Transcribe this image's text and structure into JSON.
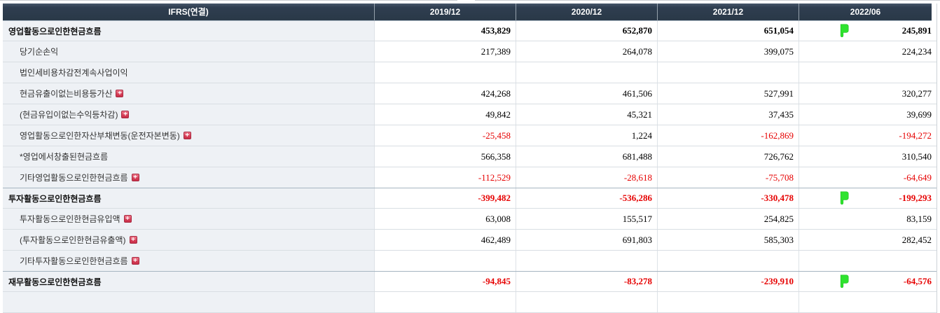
{
  "table": {
    "header": {
      "label": "IFRS(연결)",
      "periods": [
        "2019/12",
        "2020/12",
        "2021/12",
        "2022/06"
      ]
    },
    "icons": {
      "expand_plus": "+",
      "flag": "green-flag"
    },
    "colors": {
      "header_bg": "#2f3e50",
      "label_column_bg": "#eef1f5",
      "negative_value": "#e60000",
      "positive_value": "#000000",
      "flag_green": "#2fe32f",
      "expand_red": "#d63f58"
    },
    "rows": [
      {
        "label": "영업활동으로인한현금흐름",
        "type": "section",
        "expand": false,
        "flag": true,
        "values": [
          "453,829",
          "652,870",
          "651,054",
          "245,891"
        ]
      },
      {
        "label": "당기순손익",
        "type": "sub",
        "expand": false,
        "flag": false,
        "values": [
          "217,389",
          "264,078",
          "399,075",
          "224,234"
        ]
      },
      {
        "label": "법인세비용차감전계속사업이익",
        "type": "sub",
        "expand": false,
        "flag": false,
        "values": [
          "",
          "",
          "",
          ""
        ]
      },
      {
        "label": "현금유출이없는비용등가산",
        "type": "sub",
        "expand": true,
        "flag": false,
        "values": [
          "424,268",
          "461,506",
          "527,991",
          "320,277"
        ]
      },
      {
        "label": "(현금유입이없는수익등차감)",
        "type": "sub",
        "expand": true,
        "flag": false,
        "values": [
          "49,842",
          "45,321",
          "37,435",
          "39,699"
        ]
      },
      {
        "label": "영업활동으로인한자산부채변동(운전자본변동)",
        "type": "sub",
        "expand": true,
        "flag": false,
        "values": [
          "-25,458",
          "1,224",
          "-162,869",
          "-194,272"
        ]
      },
      {
        "label": "*영업에서창출된현금흐름",
        "type": "sub",
        "expand": false,
        "flag": false,
        "values": [
          "566,358",
          "681,488",
          "726,762",
          "310,540"
        ]
      },
      {
        "label": "기타영업활동으로인한현금흐름",
        "type": "sub",
        "expand": true,
        "flag": false,
        "values": [
          "-112,529",
          "-28,618",
          "-75,708",
          "-64,649"
        ]
      },
      {
        "label": "투자활동으로인한현금흐름",
        "type": "section",
        "expand": false,
        "flag": true,
        "values": [
          "-399,482",
          "-536,286",
          "-330,478",
          "-199,293"
        ]
      },
      {
        "label": "투자활동으로인한현금유입액",
        "type": "sub",
        "expand": true,
        "flag": false,
        "values": [
          "63,008",
          "155,517",
          "254,825",
          "83,159"
        ]
      },
      {
        "label": "(투자활동으로인한현금유출액)",
        "type": "sub",
        "expand": true,
        "flag": false,
        "values": [
          "462,489",
          "691,803",
          "585,303",
          "282,452"
        ]
      },
      {
        "label": "기타투자활동으로인한현금흐름",
        "type": "sub",
        "expand": true,
        "flag": false,
        "values": [
          "",
          "",
          "",
          ""
        ]
      },
      {
        "label": "재무활동으로인한현금흐름",
        "type": "section",
        "expand": false,
        "flag": true,
        "values": [
          "-94,845",
          "-83,278",
          "-239,910",
          "-64,576"
        ]
      },
      {
        "label": "",
        "type": "sub",
        "expand": false,
        "flag": false,
        "values": [
          "",
          "",
          "",
          ""
        ]
      }
    ]
  }
}
